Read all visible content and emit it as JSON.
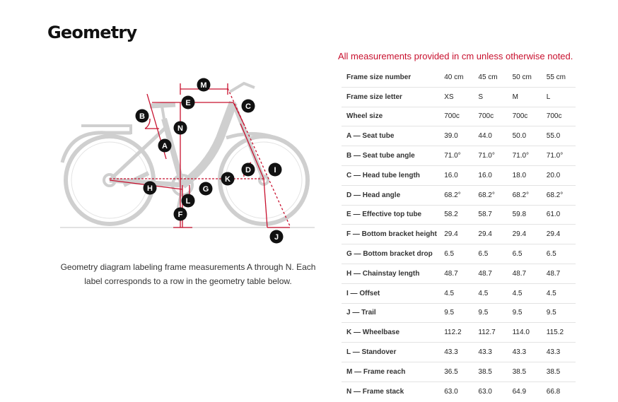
{
  "title": "Geometry",
  "note": "All measurements provided in cm unless otherwise noted.",
  "diagram": {
    "labels": [
      "M",
      "E",
      "C",
      "B",
      "N",
      "A",
      "D",
      "I",
      "K",
      "H",
      "G",
      "L",
      "F",
      "J"
    ]
  },
  "caption": "Geometry diagram labeling frame measurements A through N. Each label corresponds to a row in the geometry table below.",
  "table": {
    "rows": [
      {
        "label": "Frame size number",
        "values": [
          "40 cm",
          "45 cm",
          "50 cm",
          "55 cm"
        ]
      },
      {
        "label": "Frame size letter",
        "values": [
          "XS",
          "S",
          "M",
          "L"
        ]
      },
      {
        "label": "Wheel size",
        "values": [
          "700c",
          "700c",
          "700c",
          "700c"
        ]
      },
      {
        "label": "A — Seat tube",
        "values": [
          "39.0",
          "44.0",
          "50.0",
          "55.0"
        ]
      },
      {
        "label": "B — Seat tube angle",
        "values": [
          "71.0°",
          "71.0°",
          "71.0°",
          "71.0°"
        ]
      },
      {
        "label": "C — Head tube length",
        "values": [
          "16.0",
          "16.0",
          "18.0",
          "20.0"
        ]
      },
      {
        "label": "D — Head angle",
        "values": [
          "68.2°",
          "68.2°",
          "68.2°",
          "68.2°"
        ]
      },
      {
        "label": "E — Effective top tube",
        "values": [
          "58.2",
          "58.7",
          "59.8",
          "61.0"
        ]
      },
      {
        "label": "F — Bottom bracket height",
        "values": [
          "29.4",
          "29.4",
          "29.4",
          "29.4"
        ]
      },
      {
        "label": "G — Bottom bracket drop",
        "values": [
          "6.5",
          "6.5",
          "6.5",
          "6.5"
        ]
      },
      {
        "label": "H — Chainstay length",
        "values": [
          "48.7",
          "48.7",
          "48.7",
          "48.7"
        ]
      },
      {
        "label": "I — Offset",
        "values": [
          "4.5",
          "4.5",
          "4.5",
          "4.5"
        ]
      },
      {
        "label": "J — Trail",
        "values": [
          "9.5",
          "9.5",
          "9.5",
          "9.5"
        ]
      },
      {
        "label": "K — Wheelbase",
        "values": [
          "112.2",
          "112.7",
          "114.0",
          "115.2"
        ]
      },
      {
        "label": "L — Standover",
        "values": [
          "43.3",
          "43.3",
          "43.3",
          "43.3"
        ]
      },
      {
        "label": "M — Frame reach",
        "values": [
          "36.5",
          "38.5",
          "38.5",
          "38.5"
        ]
      },
      {
        "label": "N — Frame stack",
        "values": [
          "63.0",
          "63.0",
          "64.9",
          "66.8"
        ]
      }
    ]
  },
  "colors": {
    "accent": "#c8102e",
    "badge": "#111111"
  }
}
